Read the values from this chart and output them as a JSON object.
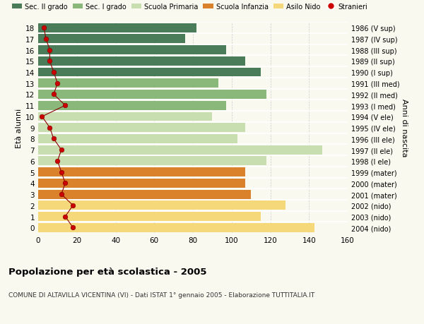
{
  "ages": [
    18,
    17,
    16,
    15,
    14,
    13,
    12,
    11,
    10,
    9,
    8,
    7,
    6,
    5,
    4,
    3,
    2,
    1,
    0
  ],
  "right_labels": [
    "1986 (V sup)",
    "1987 (IV sup)",
    "1988 (III sup)",
    "1989 (II sup)",
    "1990 (I sup)",
    "1991 (III med)",
    "1992 (II med)",
    "1993 (I med)",
    "1994 (V ele)",
    "1995 (IV ele)",
    "1996 (III ele)",
    "1997 (II ele)",
    "1998 (I ele)",
    "1999 (mater)",
    "2000 (mater)",
    "2001 (mater)",
    "2002 (nido)",
    "2003 (nido)",
    "2004 (nido)"
  ],
  "bar_values": [
    82,
    76,
    97,
    107,
    115,
    93,
    118,
    97,
    90,
    107,
    103,
    147,
    118,
    107,
    107,
    110,
    128,
    115,
    143
  ],
  "bar_colors": [
    "#4a7c59",
    "#4a7c59",
    "#4a7c59",
    "#4a7c59",
    "#4a7c59",
    "#8ab87a",
    "#8ab87a",
    "#8ab87a",
    "#c8ddb0",
    "#c8ddb0",
    "#c8ddb0",
    "#c8ddb0",
    "#c8ddb0",
    "#d9822b",
    "#d9822b",
    "#d9822b",
    "#f5d87a",
    "#f5d87a",
    "#f5d87a"
  ],
  "stranieri_values": [
    3,
    4,
    6,
    6,
    8,
    10,
    8,
    14,
    2,
    6,
    8,
    12,
    10,
    12,
    14,
    12,
    18,
    14,
    18
  ],
  "legend_labels": [
    "Sec. II grado",
    "Sec. I grado",
    "Scuola Primaria",
    "Scuola Infanzia",
    "Asilo Nido",
    "Stranieri"
  ],
  "legend_colors": [
    "#4a7c59",
    "#8ab87a",
    "#c8ddb0",
    "#d9822b",
    "#f5d87a",
    "#cc0000"
  ],
  "ylabel": "Età alunni",
  "ylabel_right": "Anni di nascita",
  "title": "Popolazione per età scolastica - 2005",
  "subtitle": "COMUNE DI ALTAVILLA VICENTINA (VI) - Dati ISTAT 1° gennaio 2005 - Elaborazione TUTTITALIA.IT",
  "xlim": [
    0,
    160
  ],
  "xticks": [
    0,
    20,
    40,
    60,
    80,
    100,
    120,
    140,
    160
  ],
  "bg_color": "#f9f9f0",
  "bar_height": 0.82
}
